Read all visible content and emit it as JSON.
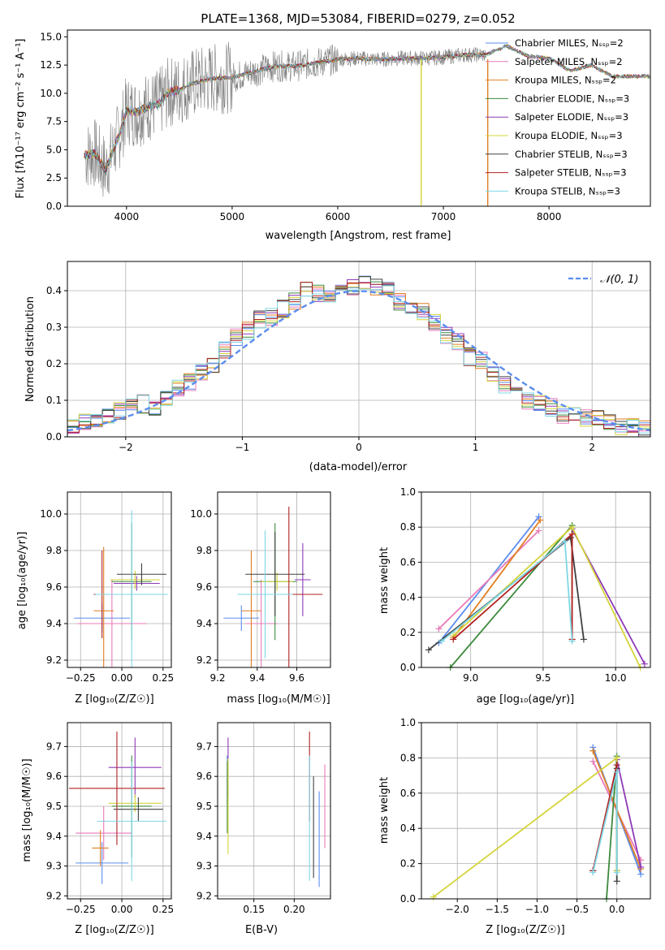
{
  "colors": [
    "#5b8def",
    "#e87ab8",
    "#e07f23",
    "#3d8a3d",
    "#8e3ab8",
    "#d4d43a",
    "#404040",
    "#b22222",
    "#7fd7e6"
  ],
  "chart_data": [
    {
      "type": "line",
      "title": "PLATE=1368, MJD=53084, FIBERID=0279, z=0.052",
      "xlabel": "wavelength [Angstrom, rest frame]",
      "ylabel": "Flux [fλ10⁻¹⁷ erg cm⁻² s⁻¹ A⁻¹]",
      "xlim": [
        3440,
        8960
      ],
      "ylim": [
        0,
        15.6
      ],
      "xticks": [
        "4000",
        "5000",
        "6000",
        "7000",
        "8000"
      ],
      "yticks": [
        "0.0",
        "2.5",
        "5.0",
        "7.5",
        "10.0",
        "12.5",
        "15.0"
      ],
      "legend": "top-right",
      "series": [
        {
          "name": "Chabrier MILES, Nₛₛₚ=2"
        },
        {
          "name": "Salpeter MILES, Nₛₛₚ=2"
        },
        {
          "name": "Kroupa MILES, Nₛₛₚ=2"
        },
        {
          "name": "Chabrier ELODIE, Nₛₛₚ=3"
        },
        {
          "name": "Salpeter ELODIE, Nₛₛₚ=3"
        },
        {
          "name": "Kroupa ELODIE, Nₛₛₚ=3"
        },
        {
          "name": "Chabrier STELIB, Nₛₛₚ=3"
        },
        {
          "name": "Salpeter STELIB, Nₛₛₚ=3"
        },
        {
          "name": "Kroupa STELIB, Nₛₛₚ=3"
        }
      ],
      "continuum": {
        "x": [
          3600,
          3700,
          3800,
          3900,
          3950,
          4000,
          4100,
          4200,
          4300,
          4400,
          4500,
          4600,
          4800,
          5000,
          5200,
          5400,
          5600,
          5800,
          6000,
          6200,
          6400,
          6600,
          6800,
          7000,
          7200,
          7400,
          7600,
          7800,
          8000,
          8200,
          8400,
          8600,
          8800,
          8960
        ],
        "y": [
          4.5,
          4.7,
          3.2,
          5.6,
          6.8,
          8.5,
          8.3,
          8.8,
          9.0,
          10.1,
          10.3,
          10.8,
          11.3,
          11.4,
          11.9,
          12.4,
          12.4,
          12.7,
          13.0,
          13.1,
          13.0,
          13.1,
          13.1,
          13.2,
          13.4,
          13.4,
          14.2,
          13.3,
          13.1,
          12.0,
          12.5,
          11.5,
          11.5,
          11.5
        ]
      },
      "observed": {
        "x": [
          3610,
          3650,
          3700,
          3750,
          3800,
          3850,
          3900,
          3950,
          4000,
          4050,
          4100,
          4150,
          4200,
          4250,
          4300,
          4350,
          4400,
          4450,
          4500,
          4550,
          4600,
          4650,
          4700,
          4750,
          4800,
          4850,
          4900,
          4950,
          5000,
          5050,
          5100,
          5150,
          5200,
          5250,
          5300,
          5350,
          5400,
          5450,
          5500,
          5550,
          5600,
          5650,
          5700,
          5750,
          5800,
          5850,
          5900,
          5950,
          6000,
          6050,
          6100,
          6150,
          6200,
          6250,
          6300,
          6350,
          6400,
          6450,
          6500,
          6550,
          6600,
          6650,
          6700,
          6750,
          6800,
          6850,
          6900,
          6950,
          7000,
          7050,
          7100,
          7150,
          7200,
          7250,
          7300,
          7350,
          7400
        ],
        "y": [
          4.5,
          5.4,
          2.1,
          6.8,
          1.5,
          4.2,
          8.0,
          3.4,
          10.5,
          5.6,
          9.7,
          6.1,
          10.8,
          7.2,
          11.4,
          6.5,
          11.0,
          7.7,
          12.2,
          8.4,
          11.5,
          9.3,
          13.0,
          8.6,
          12.5,
          9.4,
          11.8,
          10.0,
          13.4,
          9.6,
          12.2,
          10.4,
          13.8,
          10.5,
          12.5,
          11.7,
          13.6,
          11.2,
          12.9,
          11.6,
          14.1,
          11.3,
          13.2,
          11.8,
          14.7,
          12.0,
          13.6,
          12.5,
          14.2,
          12.1,
          13.8,
          12.4,
          13.5,
          12.9,
          14.0,
          12.6,
          13.2,
          12.9,
          13.7,
          12.8,
          13.3,
          12.5,
          13.6,
          12.7,
          13.5,
          12.9,
          13.4,
          13.1,
          13.6,
          12.8,
          13.5,
          13.0,
          13.3,
          13.1,
          13.4,
          12.9,
          13.2
        ]
      },
      "spikes": [
        {
          "x": 6790,
          "color": "#d4d43a"
        },
        {
          "x": 7420,
          "color": "#e07f23"
        }
      ]
    },
    {
      "type": "bar",
      "xlabel": "(data-model)/error",
      "ylabel": "Normed distribution",
      "xlim": [
        -2.5,
        2.5
      ],
      "ylim": [
        0,
        0.48
      ],
      "xticks": [
        "−2",
        "−1",
        "0",
        "1",
        "2"
      ],
      "yticks": [
        "0.0",
        "0.1",
        "0.2",
        "0.3",
        "0.4"
      ],
      "legend_label": "𝒩(0, 1)",
      "legend_color": "#5b8def",
      "bin_width": 0.1,
      "histogram_centers": [
        -2.45,
        -2.35,
        -2.25,
        -2.15,
        -2.05,
        -1.95,
        -1.85,
        -1.75,
        -1.65,
        -1.55,
        -1.45,
        -1.35,
        -1.25,
        -1.15,
        -1.05,
        -0.95,
        -0.85,
        -0.75,
        -0.65,
        -0.55,
        -0.45,
        -0.35,
        -0.25,
        -0.15,
        -0.05,
        0.05,
        0.15,
        0.25,
        0.35,
        0.45,
        0.55,
        0.65,
        0.75,
        0.85,
        0.95,
        1.05,
        1.15,
        1.25,
        1.35,
        1.45,
        1.55,
        1.65,
        1.75,
        1.85,
        1.95,
        2.05,
        2.15,
        2.25,
        2.35,
        2.45
      ],
      "histogram_values": [
        0.03,
        0.04,
        0.05,
        0.06,
        0.07,
        0.08,
        0.09,
        0.08,
        0.1,
        0.13,
        0.15,
        0.18,
        0.2,
        0.24,
        0.27,
        0.29,
        0.32,
        0.33,
        0.35,
        0.37,
        0.4,
        0.39,
        0.38,
        0.4,
        0.41,
        0.42,
        0.41,
        0.4,
        0.37,
        0.36,
        0.34,
        0.31,
        0.28,
        0.26,
        0.22,
        0.21,
        0.17,
        0.14,
        0.12,
        0.1,
        0.09,
        0.08,
        0.06,
        0.06,
        0.05,
        0.05,
        0.04,
        0.03,
        0.03,
        0.02
      ],
      "gaussian": {
        "mu": 0,
        "sigma": 1
      }
    },
    {
      "type": "scatter",
      "xlabel": "Z [log₁₀(Z/Z☉)]",
      "ylabel": "age  [log₁₀(age/yr)]",
      "xlim": [
        -0.33,
        0.3
      ],
      "ylim": [
        9.16,
        10.12
      ],
      "xticks": [
        "−0.25",
        "0.00",
        "0.25"
      ],
      "yticks": [
        "9.2",
        "9.4",
        "9.6",
        "9.8",
        "10.0"
      ],
      "points": [
        {
          "x": -0.12,
          "y": 9.43,
          "xerr": 0.17,
          "yerr": 0.08,
          "c": 0
        },
        {
          "x": -0.06,
          "y": 9.4,
          "xerr": 0.21,
          "yerr": 0.24,
          "c": 1
        },
        {
          "x": -0.11,
          "y": 9.47,
          "xerr": 0.06,
          "yerr": 0.35,
          "c": 2
        },
        {
          "x": 0.06,
          "y": 9.63,
          "xerr": 0.12,
          "yerr": 0.32,
          "c": 3
        },
        {
          "x": 0.09,
          "y": 9.62,
          "xerr": 0.14,
          "yerr": 0.04,
          "c": 4
        },
        {
          "x": 0.08,
          "y": 9.64,
          "xerr": 0.15,
          "yerr": 0.05,
          "c": 5
        },
        {
          "x": 0.12,
          "y": 9.67,
          "xerr": 0.15,
          "yerr": 0.06,
          "c": 6
        },
        {
          "x": -0.12,
          "y": 9.56,
          "xerr": 0.05,
          "yerr": 0.24,
          "c": 7
        },
        {
          "x": 0.06,
          "y": 9.56,
          "xerr": 0.22,
          "yerr": 0.46,
          "c": 8
        }
      ]
    },
    {
      "type": "scatter",
      "xlabel": "mass [log₁₀(M/M☉)]",
      "ylabel": "",
      "xlim": [
        9.2,
        9.77
      ],
      "ylim": [
        9.16,
        10.12
      ],
      "xticks": [
        "9.2",
        "9.4",
        "9.6"
      ],
      "yticks": [
        "9.2",
        "9.4",
        "9.6",
        "9.8",
        "10.0"
      ],
      "points": [
        {
          "x": 9.32,
          "y": 9.43,
          "xerr": 0.09,
          "yerr": 0.07,
          "c": 0
        },
        {
          "x": 9.42,
          "y": 9.4,
          "xerr": 0.08,
          "yerr": 0.24,
          "c": 1
        },
        {
          "x": 9.37,
          "y": 9.47,
          "xerr": 0.05,
          "yerr": 0.33,
          "c": 2
        },
        {
          "x": 9.49,
          "y": 9.63,
          "xerr": 0.11,
          "yerr": 0.32,
          "c": 3
        },
        {
          "x": 9.63,
          "y": 9.64,
          "xerr": 0.04,
          "yerr": 0.2,
          "c": 4
        },
        {
          "x": 9.5,
          "y": 9.63,
          "xerr": 0.08,
          "yerr": 0.05,
          "c": 5
        },
        {
          "x": 9.49,
          "y": 9.67,
          "xerr": 0.15,
          "yerr": 0.23,
          "c": 6
        },
        {
          "x": 9.56,
          "y": 9.56,
          "xerr": 0.17,
          "yerr": 0.48,
          "c": 7
        },
        {
          "x": 9.44,
          "y": 9.56,
          "xerr": 0.14,
          "yerr": 0.35,
          "c": 8
        }
      ]
    },
    {
      "type": "line",
      "xlabel": "age  [log₁₀(age/yr)]",
      "ylabel": "mass weight",
      "xlim": [
        8.66,
        10.24
      ],
      "ylim": [
        0,
        1.0
      ],
      "xticks": [
        "9.0",
        "9.5",
        "10.0"
      ],
      "yticks": [
        "0.0",
        "0.2",
        "0.4",
        "0.6",
        "0.8",
        "1.0"
      ],
      "series": [
        {
          "c": 0,
          "x": [
            8.78,
            9.47
          ],
          "y": [
            0.14,
            0.86
          ]
        },
        {
          "c": 1,
          "x": [
            8.78,
            9.47
          ],
          "y": [
            0.22,
            0.78
          ]
        },
        {
          "c": 2,
          "x": [
            8.88,
            9.48
          ],
          "y": [
            0.17,
            0.84
          ]
        },
        {
          "c": 3,
          "x": [
            8.86,
            9.7,
            9.7
          ],
          "y": [
            0.0,
            0.81,
            0.16
          ]
        },
        {
          "c": 4,
          "x": [
            9.7,
            10.2
          ],
          "y": [
            0.79,
            0.02
          ]
        },
        {
          "c": 5,
          "x": [
            8.88,
            9.7,
            10.17
          ],
          "y": [
            0.18,
            0.8,
            0.0
          ]
        },
        {
          "c": 6,
          "x": [
            8.71,
            9.69,
            9.78
          ],
          "y": [
            0.1,
            0.74,
            0.16
          ]
        },
        {
          "c": 7,
          "x": [
            8.88,
            9.7,
            9.7
          ],
          "y": [
            0.16,
            0.76,
            0.16
          ]
        },
        {
          "c": 8,
          "x": [
            8.8,
            9.65,
            9.7
          ],
          "y": [
            0.15,
            0.72,
            0.15
          ]
        }
      ]
    },
    {
      "type": "scatter",
      "xlabel": "Z [log₁₀(Z/Z☉)]",
      "ylabel": "mass [log₁₀(M/M☉)]",
      "xlim": [
        -0.33,
        0.3
      ],
      "ylim": [
        9.19,
        9.78
      ],
      "xticks": [
        "−0.25",
        "0.00",
        "0.25"
      ],
      "yticks": [
        "9.2",
        "9.3",
        "9.4",
        "9.5",
        "9.6",
        "9.7"
      ],
      "points": [
        {
          "x": -0.12,
          "y": 9.31,
          "xerr": 0.16,
          "yerr": 0.07,
          "c": 0
        },
        {
          "x": -0.11,
          "y": 9.41,
          "xerr": 0.17,
          "yerr": 0.09,
          "c": 1
        },
        {
          "x": -0.13,
          "y": 9.36,
          "xerr": 0.05,
          "yerr": 0.06,
          "c": 2
        },
        {
          "x": 0.06,
          "y": 9.5,
          "xerr": 0.12,
          "yerr": 0.17,
          "c": 3
        },
        {
          "x": 0.08,
          "y": 9.63,
          "xerr": 0.16,
          "yerr": 0.1,
          "c": 4
        },
        {
          "x": 0.08,
          "y": 9.51,
          "xerr": 0.16,
          "yerr": 0.03,
          "c": 5
        },
        {
          "x": 0.1,
          "y": 9.49,
          "xerr": 0.15,
          "yerr": 0.04,
          "c": 6
        },
        {
          "x": -0.03,
          "y": 9.56,
          "xerr": 0.29,
          "yerr": 0.19,
          "c": 7
        },
        {
          "x": 0.06,
          "y": 9.45,
          "xerr": 0.21,
          "yerr": 0.2,
          "c": 8
        }
      ]
    },
    {
      "type": "scatter",
      "xlabel": "E(B-V)",
      "ylabel": "",
      "xlim": [
        0.105,
        0.245
      ],
      "ylim": [
        9.19,
        9.78
      ],
      "xticks": [
        "0.15",
        "0.20"
      ],
      "yticks": [
        "9.2",
        "9.3",
        "9.4",
        "9.5",
        "9.6",
        "9.7"
      ],
      "points": [
        {
          "x": 0.117,
          "y": 9.59,
          "yerr": 0.08,
          "c": 0
        },
        {
          "x": 0.238,
          "y": 9.5,
          "yerr": 0.14,
          "c": 1
        },
        {
          "x": 0.117,
          "y": 9.53,
          "yerr": 0.12,
          "c": 3
        },
        {
          "x": 0.118,
          "y": 9.63,
          "yerr": 0.1,
          "c": 4
        },
        {
          "x": 0.118,
          "y": 9.5,
          "yerr": 0.16,
          "c": 5
        },
        {
          "x": 0.224,
          "y": 9.43,
          "yerr": 0.17,
          "c": 6
        },
        {
          "x": 0.231,
          "y": 9.39,
          "yerr": 0.16,
          "c": 0
        },
        {
          "x": 0.219,
          "y": 9.6,
          "yerr": 0.15,
          "c": 7
        },
        {
          "x": 0.219,
          "y": 9.46,
          "yerr": 0.21,
          "c": 8
        }
      ]
    },
    {
      "type": "line",
      "xlabel": "Z [log₁₀(Z/Z☉)]",
      "ylabel": "mass weight",
      "xlim": [
        -2.45,
        0.42
      ],
      "ylim": [
        0,
        1.0
      ],
      "xticks": [
        "−2.0",
        "−1.5",
        "−1.0",
        "−0.5",
        "0.0"
      ],
      "yticks": [
        "0.0",
        "0.2",
        "0.4",
        "0.6",
        "0.8",
        "1.0"
      ],
      "series": [
        {
          "c": 0,
          "x": [
            -0.3,
            0.3
          ],
          "y": [
            0.86,
            0.14
          ]
        },
        {
          "c": 1,
          "x": [
            -0.3,
            0.3
          ],
          "y": [
            0.78,
            0.22
          ]
        },
        {
          "c": 2,
          "x": [
            -0.3,
            0.3
          ],
          "y": [
            0.84,
            0.17
          ]
        },
        {
          "c": 3,
          "x": [
            -0.13,
            0.0,
            0.0
          ],
          "y": [
            0.0,
            0.81,
            0.16
          ]
        },
        {
          "c": 4,
          "x": [
            0.0,
            0.3
          ],
          "y": [
            0.79,
            0.18
          ]
        },
        {
          "c": 5,
          "x": [
            -2.3,
            0.0,
            0.0
          ],
          "y": [
            0.01,
            0.8,
            0.16
          ]
        },
        {
          "c": 6,
          "x": [
            -0.3,
            0.0,
            0.0
          ],
          "y": [
            0.16,
            0.74,
            0.1
          ]
        },
        {
          "c": 7,
          "x": [
            -0.3,
            0.0
          ],
          "y": [
            0.16,
            0.76
          ]
        },
        {
          "c": 8,
          "x": [
            -0.3,
            0.0,
            0.0
          ],
          "y": [
            0.15,
            0.72,
            0.15
          ]
        }
      ]
    }
  ]
}
